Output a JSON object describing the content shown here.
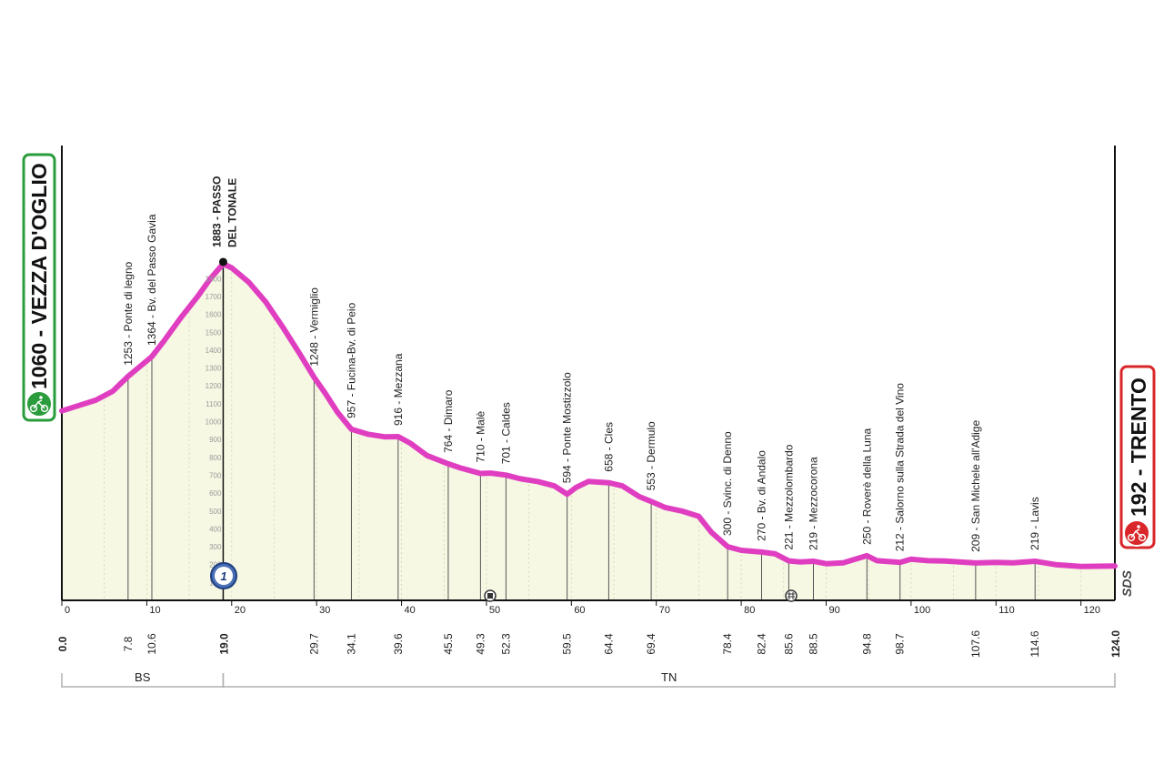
{
  "chart_data": {
    "type": "area",
    "start": {
      "name": "VEZZA D'OGLIO",
      "altitude": 1060,
      "label": "1060 - VEZZA D'OGLIO",
      "color": "#2a9c3c"
    },
    "finish": {
      "name": "TRENTO",
      "altitude": 192,
      "label": "192 - TRENTO",
      "color": "#d9262a"
    },
    "distance_km": {
      "start": "0.0",
      "finish": "124.0"
    },
    "summit": {
      "km": 19.0,
      "altitude": 1883,
      "label_line1": "1883 - PASSO",
      "label_line2": "DEL TONALE",
      "km_label": "19.0",
      "category": "1"
    },
    "waypoints": [
      {
        "km": 7.8,
        "km_label": "7.8",
        "label": "1253 - Ponte di legno"
      },
      {
        "km": 10.6,
        "km_label": "10.6",
        "label": "1364 - Bv. del Passo Gavia"
      },
      {
        "km": 29.7,
        "km_label": "29.7",
        "label": "1248 - Vermiglio"
      },
      {
        "km": 34.1,
        "km_label": "34.1",
        "label": "957 - Fucina-Bv. di Peio"
      },
      {
        "km": 39.6,
        "km_label": "39.6",
        "label": "916 - Mezzana"
      },
      {
        "km": 45.5,
        "km_label": "45.5",
        "label": "764 - Dimaro"
      },
      {
        "km": 49.3,
        "km_label": "49.3",
        "label": "710 - Malè"
      },
      {
        "km": 52.3,
        "km_label": "52.3",
        "label": "701 - Caldes"
      },
      {
        "km": 59.5,
        "km_label": "59.5",
        "label": "594 - Ponte Mostizzolo"
      },
      {
        "km": 64.4,
        "km_label": "64.4",
        "label": "658 - Cles"
      },
      {
        "km": 69.4,
        "km_label": "69.4",
        "label": "553 - Dermulo"
      },
      {
        "km": 78.4,
        "km_label": "78.4",
        "label": "300 - Svinc. di Denno"
      },
      {
        "km": 82.4,
        "km_label": "82.4",
        "label": "270 - Bv. di Andalo"
      },
      {
        "km": 85.6,
        "km_label": "85.6",
        "label": "221 - Mezzolombardo"
      },
      {
        "km": 88.5,
        "km_label": "88.5",
        "label": "219 - Mezzocorona"
      },
      {
        "km": 94.8,
        "km_label": "94.8",
        "label": "250 - Roverè della Luna"
      },
      {
        "km": 98.7,
        "km_label": "98.7",
        "label": "212 - Salorno sulla Strada del Vino"
      },
      {
        "km": 107.6,
        "km_label": "107.6",
        "label": "209 - San Michele all'Adige"
      },
      {
        "km": 114.6,
        "km_label": "114.6",
        "label": "219 - Lavis"
      }
    ],
    "profile": [
      [
        0,
        1060
      ],
      [
        2,
        1090
      ],
      [
        4,
        1120
      ],
      [
        6,
        1170
      ],
      [
        7.8,
        1253
      ],
      [
        9,
        1300
      ],
      [
        10.6,
        1364
      ],
      [
        12,
        1450
      ],
      [
        14,
        1580
      ],
      [
        16,
        1700
      ],
      [
        17.5,
        1800
      ],
      [
        19,
        1883
      ],
      [
        20,
        1860
      ],
      [
        22,
        1780
      ],
      [
        24,
        1670
      ],
      [
        26,
        1530
      ],
      [
        28,
        1380
      ],
      [
        29.7,
        1248
      ],
      [
        31,
        1160
      ],
      [
        32.5,
        1050
      ],
      [
        34.1,
        957
      ],
      [
        36,
        930
      ],
      [
        38,
        915
      ],
      [
        39.6,
        916
      ],
      [
        41,
        880
      ],
      [
        43,
        810
      ],
      [
        45.5,
        764
      ],
      [
        47,
        740
      ],
      [
        49.3,
        710
      ],
      [
        50.5,
        712
      ],
      [
        52.3,
        701
      ],
      [
        54,
        680
      ],
      [
        56,
        665
      ],
      [
        58,
        640
      ],
      [
        59.5,
        594
      ],
      [
        60.5,
        630
      ],
      [
        62,
        665
      ],
      [
        64.4,
        658
      ],
      [
        66,
        640
      ],
      [
        68,
        580
      ],
      [
        69.4,
        553
      ],
      [
        71,
        520
      ],
      [
        73,
        500
      ],
      [
        75,
        470
      ],
      [
        76.5,
        380
      ],
      [
        78.4,
        300
      ],
      [
        80,
        280
      ],
      [
        82.4,
        270
      ],
      [
        84,
        260
      ],
      [
        85.6,
        221
      ],
      [
        87,
        215
      ],
      [
        88.5,
        219
      ],
      [
        90,
        205
      ],
      [
        92,
        210
      ],
      [
        94.8,
        250
      ],
      [
        96,
        222
      ],
      [
        98.7,
        212
      ],
      [
        100,
        230
      ],
      [
        102,
        222
      ],
      [
        104,
        220
      ],
      [
        107.6,
        209
      ],
      [
        110,
        212
      ],
      [
        112,
        210
      ],
      [
        114.6,
        219
      ],
      [
        117,
        200
      ],
      [
        120,
        190
      ],
      [
        124,
        192
      ]
    ],
    "x_ticks": [
      0,
      10,
      20,
      30,
      40,
      50,
      60,
      70,
      80,
      90,
      100,
      110,
      120
    ],
    "y_ticks": [
      100,
      200,
      300,
      400,
      500,
      600,
      700,
      800,
      900,
      1000,
      1100,
      1200,
      1300,
      1400,
      1500,
      1600,
      1700,
      1800
    ],
    "xlim": [
      0,
      124
    ],
    "ylim": [
      0,
      1900
    ],
    "regions": [
      {
        "label": "BS",
        "from_km": 0,
        "to_km": 19
      },
      {
        "label": "TN",
        "from_km": 19,
        "to_km": 124
      }
    ],
    "grid": true,
    "line_color": "#e03ec1",
    "fill_color": "#f6f8e3",
    "sponsor": "SDS"
  }
}
